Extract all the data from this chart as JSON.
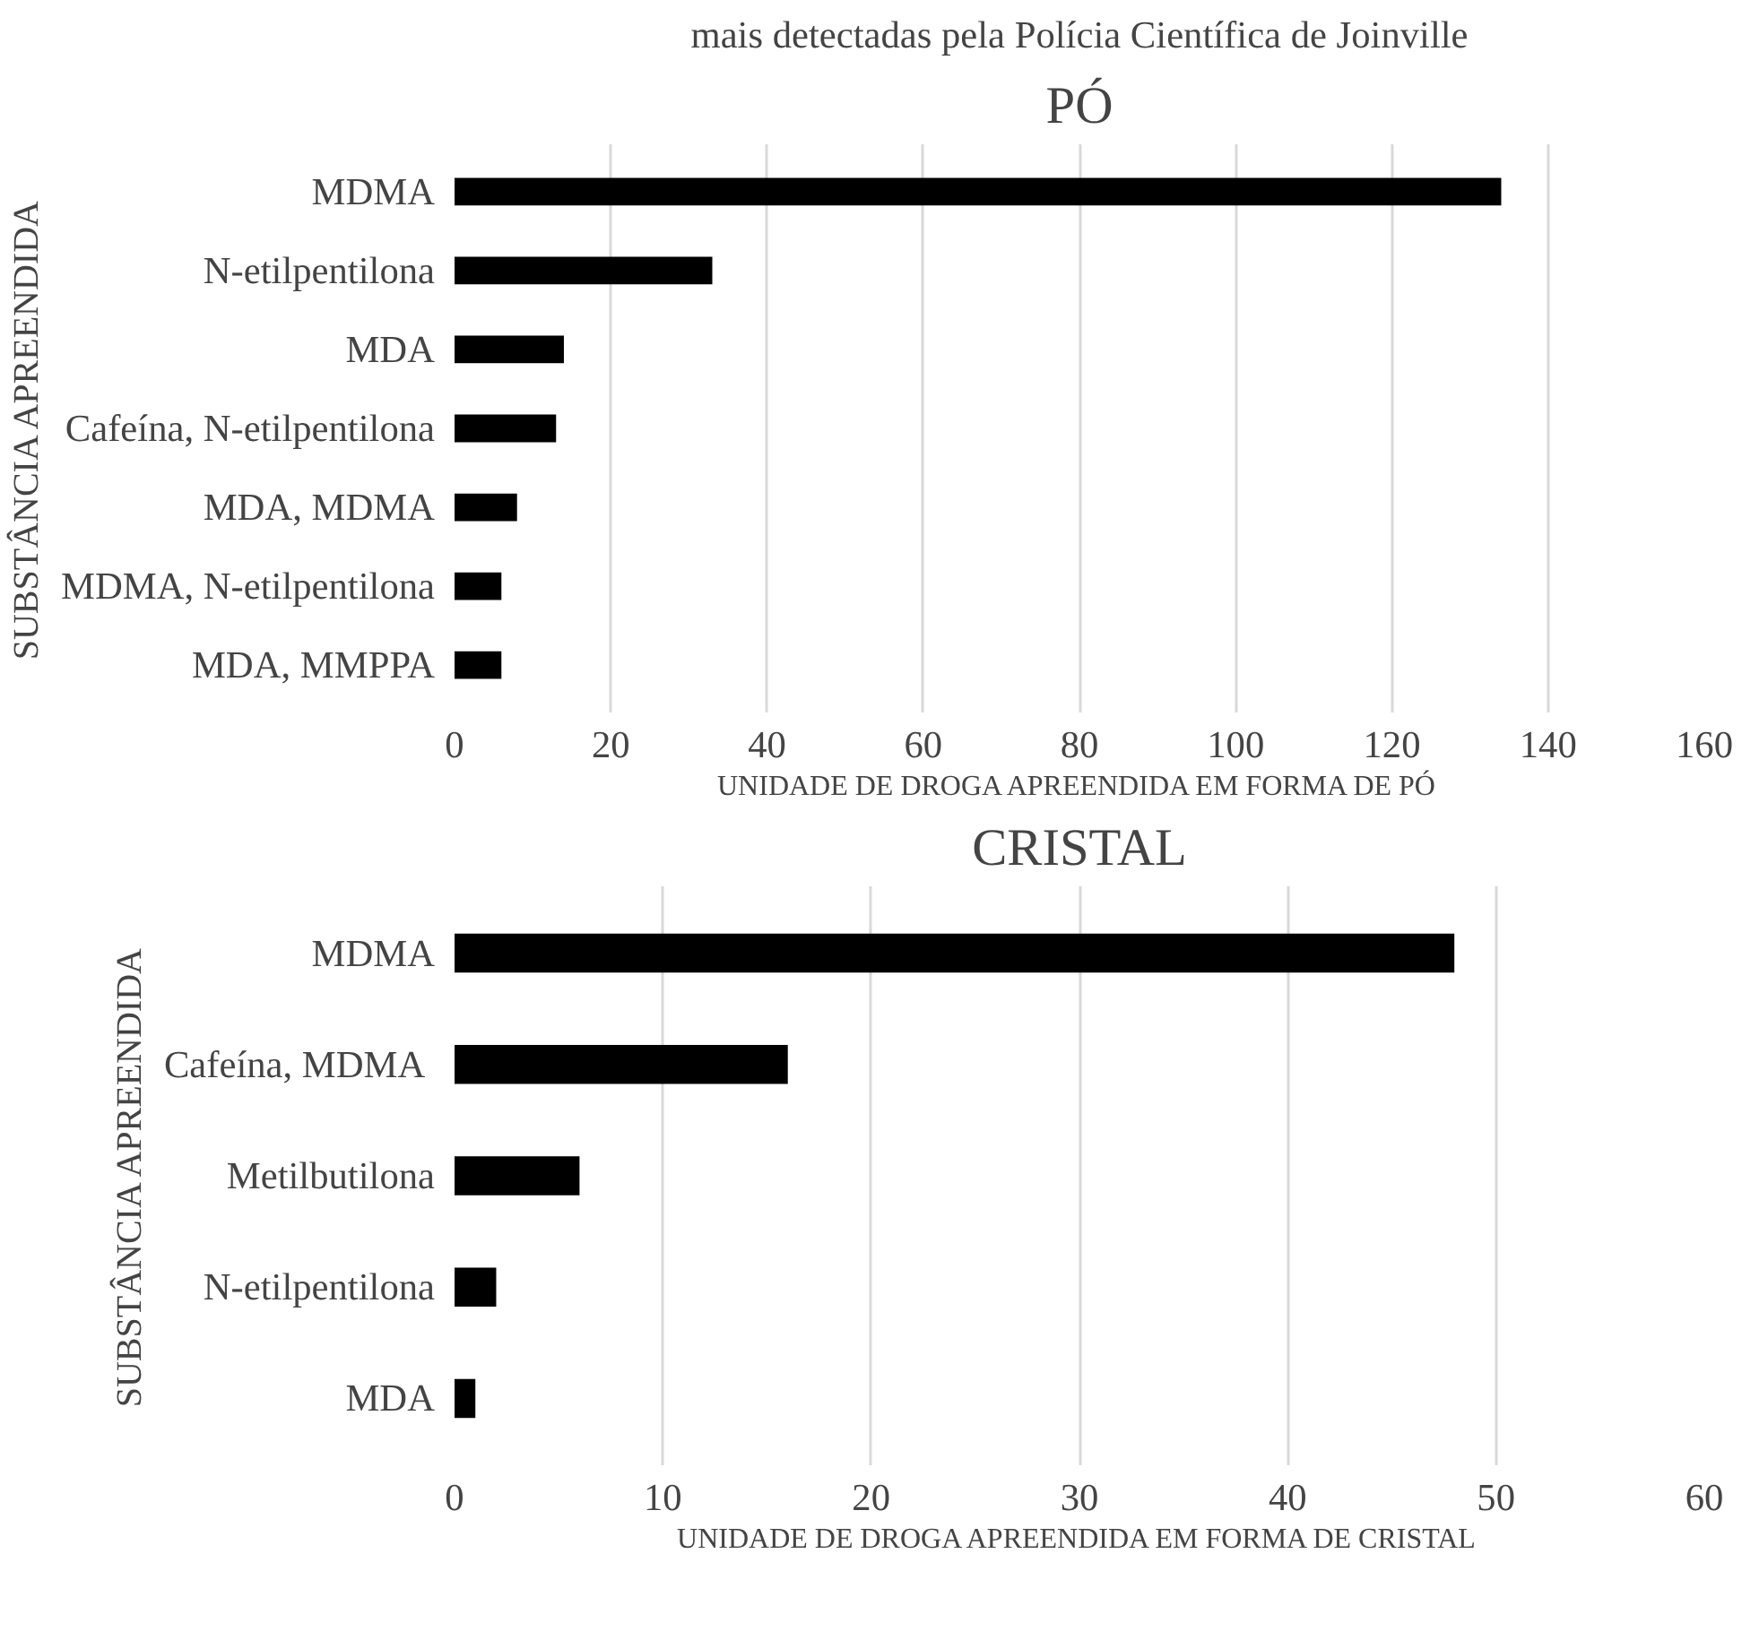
{
  "chart_data": [
    {
      "type": "bar",
      "orientation": "horizontal",
      "title": "PÓ",
      "annotations": [
        "mais detectadas pela Polícia Científica de Joinville"
      ],
      "xlabel": "UNIDADE DE DROGA APREENDIDA EM FORMA DE PÓ",
      "ylabel": "SUBSTÂNCIA APREENDIDA",
      "categories": [
        "MDMA",
        "N-etilpentilona",
        "MDA",
        "Cafeína, N-etilpentilona",
        "MDA, MDMA",
        "MDMA, N-etilpentilona",
        "MDA, MMPPA"
      ],
      "values": [
        134,
        33,
        14,
        13,
        8,
        6,
        6
      ],
      "color": "#000000",
      "xlim": [
        0,
        160
      ],
      "xticks": [
        0,
        20,
        40,
        60,
        80,
        100,
        120,
        140,
        160
      ],
      "grid": "x"
    },
    {
      "type": "bar",
      "orientation": "horizontal",
      "title": "CRISTAL",
      "xlabel": "UNIDADE DE DROGA APREENDIDA EM FORMA DE CRISTAL",
      "ylabel": "SUBSTÂNCIA APREENDIDA",
      "categories": [
        "MDMA",
        "Cafeína, MDMA ",
        "Metilbutilona",
        "N-etilpentilona",
        "MDA"
      ],
      "values": [
        48,
        16,
        6,
        2,
        1
      ],
      "color": "#000000",
      "xlim": [
        0,
        60
      ],
      "xticks": [
        0,
        10,
        20,
        30,
        40,
        50,
        60
      ],
      "grid": "x"
    }
  ]
}
